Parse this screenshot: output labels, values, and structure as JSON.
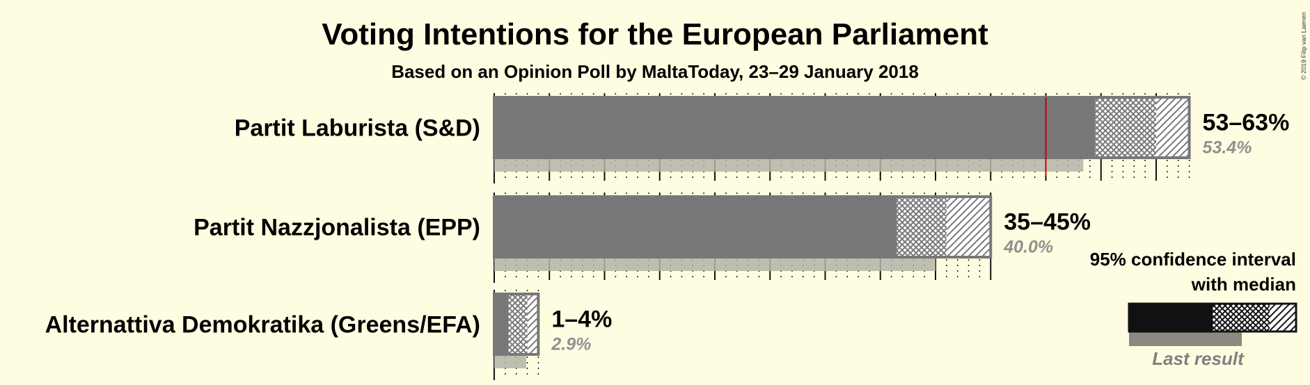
{
  "title": "Voting Intentions for the European Parliament",
  "subtitle": "Based on an Opinion Poll by MaltaToday, 23–29 January 2018",
  "copyright": "© 2019 Filip van Laenen",
  "legend": {
    "line1": "95% confidence interval",
    "line2": "with median",
    "last_result": "Last result"
  },
  "colors": {
    "background": "#fffde1",
    "bar": "#787878",
    "last_result": "#b4b4a8",
    "legend_solid": "#111111",
    "legend_last": "#8a8a80",
    "majority_line": "#cc0000"
  },
  "chart_data": {
    "type": "bar",
    "orientation": "horizontal",
    "categories": [
      "Partit Laburista (S&D)",
      "Partit Nazzjonalista (EPP)",
      "Alternattiva Demokratika (Greens/EFA)"
    ],
    "range_labels": [
      "53–63%",
      "35–45%",
      "1–4%"
    ],
    "median_labels": [
      "53.4%",
      "40.0%",
      "2.9%"
    ],
    "ci95_low": [
      53,
      35,
      1
    ],
    "ci80_low": [
      54.5,
      36.5,
      1.3
    ],
    "ci80_high": [
      60,
      41,
      3
    ],
    "ci95_high": [
      63,
      45,
      4
    ],
    "last_result": [
      53.4,
      40.0,
      2.9
    ],
    "majority_threshold": 50,
    "grid_major_step": 5,
    "grid_minor_step": 1,
    "xlim": [
      0,
      65
    ]
  }
}
